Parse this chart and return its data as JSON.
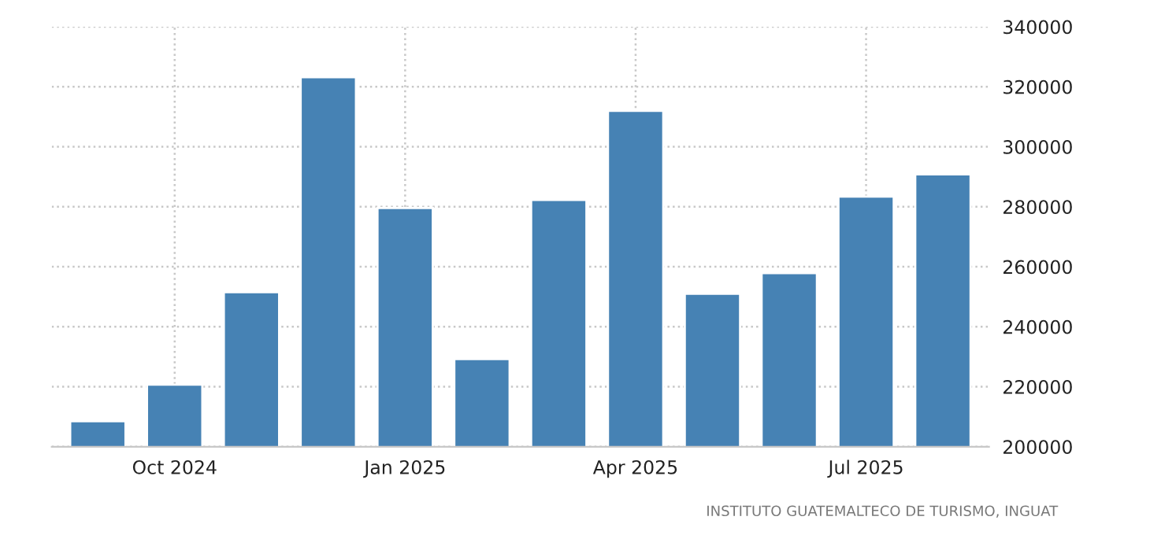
{
  "chart_data": {
    "type": "bar",
    "categories": [
      null,
      "Oct 2024",
      null,
      null,
      "Jan 2025",
      null,
      null,
      "Apr 2025",
      null,
      null,
      "Jul 2025",
      null
    ],
    "values": [
      208500,
      220700,
      251500,
      323200,
      279600,
      229200,
      282300,
      312000,
      251000,
      257900,
      283400,
      290800
    ],
    "color": "#4682b4",
    "ylim": [
      200000,
      340000
    ],
    "yticks": [
      200000,
      220000,
      240000,
      260000,
      280000,
      300000,
      320000,
      340000
    ],
    "grid": true,
    "annotations": [
      "INSTITUTO GUATEMALTECO DE TURISMO, INGUAT"
    ]
  }
}
